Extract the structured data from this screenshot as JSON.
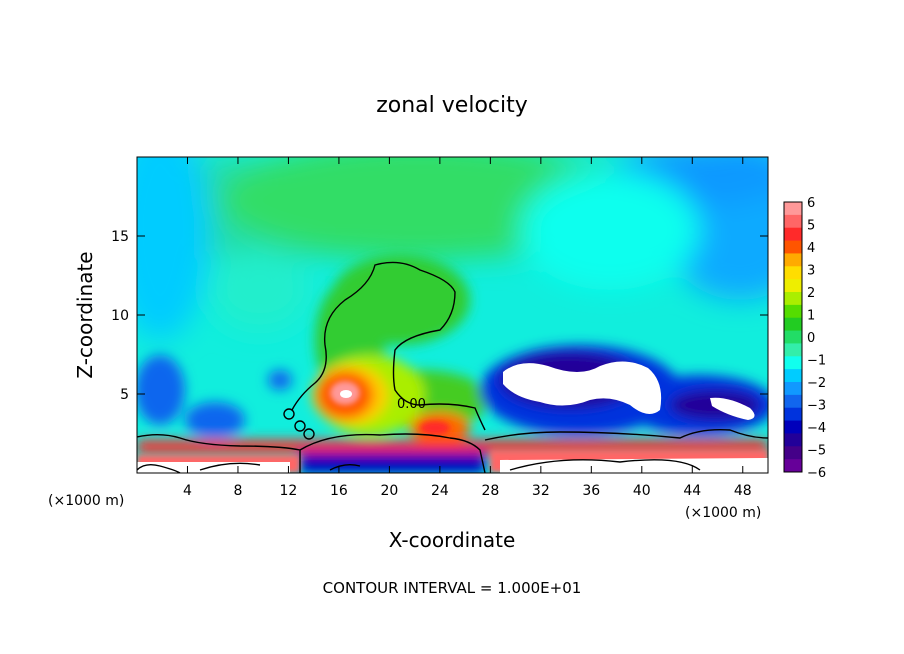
{
  "chart_data": {
    "type": "heatmap",
    "title": "zonal velocity",
    "xlabel": "X-coordinate",
    "ylabel": "Z-coordinate",
    "x_unit_label": "(×1000 m)",
    "x_unit_label_right": "(×1000 m)",
    "xlim": [
      0,
      50
    ],
    "ylim": [
      0,
      20
    ],
    "xticks": [
      4,
      8,
      12,
      16,
      20,
      24,
      28,
      32,
      36,
      40,
      44,
      48
    ],
    "yticks": [
      5,
      10,
      15
    ],
    "footer": "CONTOUR INTERVAL = 1.000E+01",
    "contour_label": "0.00",
    "colorbar": {
      "levels": [
        6,
        5,
        4,
        3,
        2,
        1,
        0,
        -1,
        -2,
        -3,
        -4,
        -5,
        -6
      ],
      "labels": [
        "6",
        "5",
        "4",
        "3",
        "2",
        "1",
        "0",
        "−1",
        "−2",
        "−3",
        "−4",
        "−5",
        "−6"
      ],
      "colors": [
        "#ff9999",
        "#ff6666",
        "#ff2a2a",
        "#ff5500",
        "#ffaa00",
        "#ffdd00",
        "#eeee00",
        "#aaee00",
        "#55dd00",
        "#22cc22",
        "#22dd66",
        "#33eeaa",
        "#11ffee",
        "#00ccff",
        "#1199ff",
        "#1166ee",
        "#0033dd",
        "#0000bb",
        "#220099",
        "#440088",
        "#660099"
      ]
    },
    "features": {
      "background": -2,
      "positive_core": {
        "x": 16.5,
        "z": 5.5,
        "value": 6
      },
      "negative_cores": [
        {
          "x": 36,
          "z": 6,
          "value": -6
        },
        {
          "x": 46,
          "z": 4.5,
          "value": -6
        }
      ],
      "zero_contour": "outlines plume from x≈12 to x≈26, z up to ≈13"
    }
  }
}
